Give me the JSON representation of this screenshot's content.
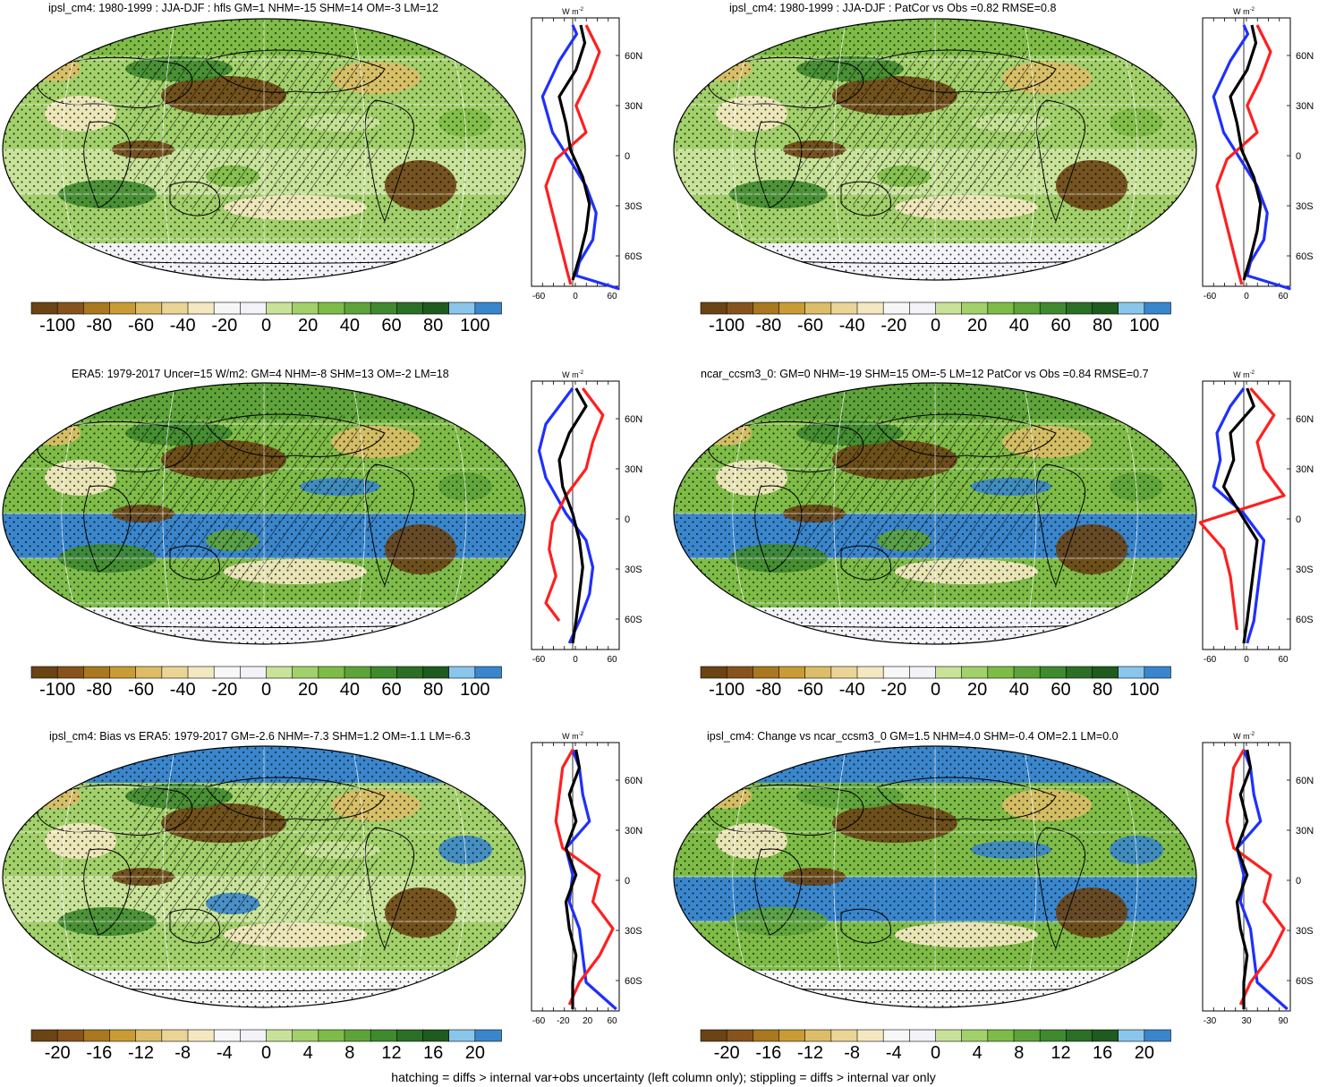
{
  "footer": "hatching = diffs > internal var+obs uncertainty (left column only); stippling = diffs > internal var only",
  "colors": {
    "scale": [
      "#6b4414",
      "#87531c",
      "#a9781f",
      "#c99b35",
      "#ddbd67",
      "#ebd596",
      "#f4e8c1",
      "#f7f7f7",
      "#f2f2f8",
      "#c8e399",
      "#a2d06a",
      "#7ebc47",
      "#5ea33a",
      "#3f8a2f",
      "#2b6f26",
      "#1f5a1f",
      "#8ac6ec",
      "#3a86cc"
    ]
  },
  "panels": [
    {
      "id": "p1",
      "title": "ipsl_cm4: 1980-1999 : JJA-DJF : hfls GM=1 NHM=-15 SHM=14 OM=-3 LM=12",
      "colorbar_labels": [
        "-100",
        "-80",
        "-60",
        "-40",
        "-20",
        "0",
        "20",
        "40",
        "60",
        "80",
        "100"
      ],
      "profile": {
        "units": "W m",
        "units_sup": "-2",
        "x_ticks": [
          "-60",
          "0",
          "60"
        ],
        "y_ticks": [
          "60N",
          "30N",
          "0",
          "30S",
          "60S"
        ]
      }
    },
    {
      "id": "p2",
      "title": "ipsl_cm4: 1980-1999 : JJA-DJF : PatCor vs Obs =0.82 RMSE=0.8",
      "colorbar_labels": [
        "-100",
        "-80",
        "-60",
        "-40",
        "-20",
        "0",
        "20",
        "40",
        "60",
        "80",
        "100"
      ],
      "profile": {
        "units": "W m",
        "units_sup": "-2",
        "x_ticks": [
          "-60",
          "0",
          "60"
        ],
        "y_ticks": [
          "60N",
          "30N",
          "0",
          "30S",
          "60S"
        ]
      }
    },
    {
      "id": "p3",
      "title": "ERA5: 1979-2017 Uncer=15 W/m2: GM=4 NHM=-8 SHM=13 OM=-2 LM=18",
      "colorbar_labels": [
        "-100",
        "-80",
        "-60",
        "-40",
        "-20",
        "0",
        "20",
        "40",
        "60",
        "80",
        "100"
      ],
      "profile": {
        "units": "W m",
        "units_sup": "-2",
        "x_ticks": [
          "-60",
          "0",
          "60"
        ],
        "y_ticks": [
          "60N",
          "30N",
          "0",
          "30S",
          "60S"
        ]
      }
    },
    {
      "id": "p4",
      "title": "ncar_ccsm3_0: GM=0 NHM=-19 SHM=15 OM=-5 LM=12 PatCor vs Obs =0.84 RMSE=0.7",
      "colorbar_labels": [
        "-100",
        "-80",
        "-60",
        "-40",
        "-20",
        "0",
        "20",
        "40",
        "60",
        "80",
        "100"
      ],
      "profile": {
        "units": "W m",
        "units_sup": "-2",
        "x_ticks": [
          "-60",
          "0",
          "60"
        ],
        "y_ticks": [
          "60N",
          "30N",
          "0",
          "30S",
          "60S"
        ]
      }
    },
    {
      "id": "p5",
      "title": "ipsl_cm4: Bias vs ERA5: 1979-2017 GM=-2.6 NHM=-7.3 SHM=1.2 OM=-1.1 LM=-6.3",
      "colorbar_labels": [
        "-20",
        "-16",
        "-12",
        "-8",
        "-4",
        "0",
        "4",
        "8",
        "12",
        "16",
        "20"
      ],
      "profile": {
        "units": "W m",
        "units_sup": "-2",
        "x_ticks": [
          "-60",
          "-20",
          "20",
          "60"
        ],
        "y_ticks": [
          "60N",
          "30N",
          "0",
          "30S",
          "60S"
        ]
      }
    },
    {
      "id": "p6",
      "title": "ipsl_cm4: Change vs ncar_ccsm3_0 GM=1.5 NHM=4.0 SHM=-0.4 OM=2.1 LM=0.0",
      "colorbar_labels": [
        "-20",
        "-16",
        "-12",
        "-8",
        "-4",
        "0",
        "4",
        "8",
        "12",
        "16",
        "20"
      ],
      "profile": {
        "units": "W m",
        "units_sup": "-2",
        "x_ticks": [
          "-30",
          "30",
          "90"
        ],
        "y_ticks": [
          "60N",
          "30N",
          "0",
          "30S",
          "60S"
        ]
      }
    }
  ]
}
